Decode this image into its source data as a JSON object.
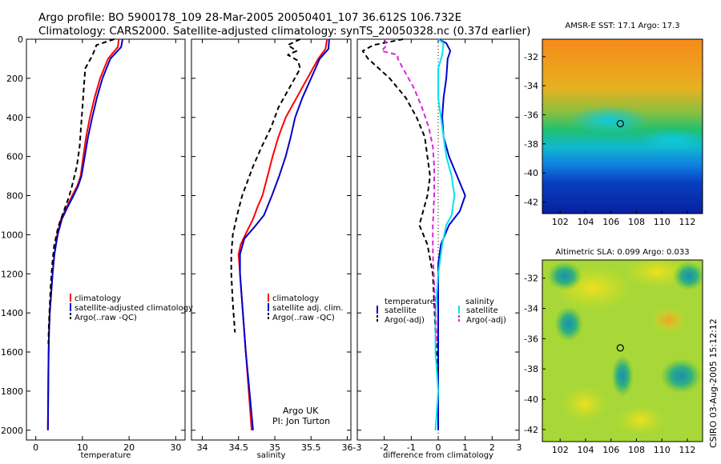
{
  "header": {
    "line1": "Argo profile: BO 5900178_109 28-Mar-2005 20050401_107 36.612S 106.732E",
    "line2": "Climatology: CARS2000. Satellite-adjusted climatology: synTS_20050328.nc (0.37d earlier)"
  },
  "credit": {
    "line1": "Argo UK",
    "line2": "PI: Jon Turton"
  },
  "side_stamp": "CSIRO 03-Aug-2005 15:12:12",
  "colors": {
    "climatology": "#ff0000",
    "satellite": "#0000cc",
    "argo": "#000000",
    "sal_satellite": "#00e5ee",
    "sal_argo": "#dd22dd"
  },
  "chart_data": [
    {
      "type": "line",
      "xlabel": "temperature",
      "xticks": [
        0,
        10,
        20,
        30
      ],
      "xlim": [
        -2,
        32
      ],
      "yticks": [
        0,
        200,
        400,
        600,
        800,
        1000,
        1200,
        1400,
        1600,
        1800,
        2000
      ],
      "ylim": [
        2050,
        0
      ],
      "legend": [
        "climatology",
        "satellite-adjusted climatology",
        "Argo(..raw -QC)"
      ],
      "series": [
        {
          "name": "climatology",
          "color": "#ff0000",
          "dash": "",
          "x": [
            17.8,
            17.6,
            15.5,
            13.8,
            12.6,
            11.6,
            10.8,
            10.2,
            9.6,
            8.9,
            7.8,
            6.6,
            5.4,
            4.6,
            4.0,
            3.6,
            3.3,
            3.0,
            2.85,
            2.75,
            2.7,
            2.65,
            2.6
          ],
          "y": [
            0,
            40,
            100,
            200,
            300,
            400,
            500,
            600,
            700,
            750,
            800,
            860,
            920,
            1000,
            1100,
            1200,
            1300,
            1400,
            1500,
            1600,
            1700,
            1850,
            2000
          ]
        },
        {
          "name": "satellite-adjusted climatology",
          "color": "#0000cc",
          "dash": "",
          "x": [
            18.6,
            18.3,
            16.0,
            14.3,
            13.1,
            12.1,
            11.2,
            10.5,
            9.8,
            9.1,
            8.1,
            6.8,
            5.6,
            4.7,
            4.0,
            3.6,
            3.3,
            3.0,
            2.85,
            2.75,
            2.7,
            2.65,
            2.6
          ],
          "y": [
            0,
            40,
            100,
            200,
            300,
            400,
            500,
            600,
            700,
            750,
            800,
            860,
            920,
            1000,
            1100,
            1200,
            1300,
            1400,
            1500,
            1600,
            1700,
            1850,
            2000
          ]
        },
        {
          "name": "Argo(..raw -QC)",
          "color": "#000000",
          "dash": "6,4",
          "x": [
            16.8,
            13.0,
            12.2,
            10.6,
            10.3,
            10.0,
            9.7,
            9.4,
            8.8,
            8.0,
            7.2,
            6.0,
            4.8,
            3.9,
            3.5,
            3.2,
            3.0,
            2.8,
            2.7
          ],
          "y": [
            0,
            30,
            80,
            150,
            250,
            350,
            450,
            550,
            650,
            730,
            800,
            880,
            960,
            1060,
            1160,
            1260,
            1360,
            1460,
            1560
          ]
        }
      ]
    },
    {
      "type": "line",
      "xlabel": "salinity",
      "xticks": [
        34,
        34.5,
        35,
        35.5,
        36
      ],
      "xlim": [
        33.85,
        36.05
      ],
      "yticks": [
        0,
        200,
        400,
        600,
        800,
        1000,
        1200,
        1400,
        1600,
        1800,
        2000
      ],
      "ylim": [
        2050,
        0
      ],
      "legend": [
        "climatology",
        "satellite adj. clim.",
        "Argo(..raw -QC)"
      ],
      "series": [
        {
          "name": "climatology",
          "color": "#ff0000",
          "dash": "",
          "x": [
            35.72,
            35.7,
            35.6,
            35.45,
            35.3,
            35.15,
            35.05,
            34.97,
            34.9,
            34.83,
            34.76,
            34.7,
            34.62,
            34.53,
            34.5,
            34.52,
            34.56,
            34.6,
            34.64,
            34.68
          ],
          "y": [
            0,
            50,
            100,
            200,
            300,
            400,
            500,
            600,
            700,
            800,
            860,
            920,
            980,
            1050,
            1100,
            1200,
            1400,
            1600,
            1800,
            2000
          ]
        },
        {
          "name": "satellite adj. clim.",
          "color": "#0000cc",
          "dash": "",
          "x": [
            35.75,
            35.74,
            35.62,
            35.5,
            35.38,
            35.28,
            35.22,
            35.15,
            35.06,
            34.96,
            34.85,
            34.72,
            34.58,
            34.52,
            34.52,
            34.56,
            34.6,
            34.65,
            34.7
          ],
          "y": [
            0,
            50,
            100,
            200,
            300,
            400,
            500,
            600,
            700,
            800,
            900,
            960,
            1020,
            1100,
            1200,
            1400,
            1600,
            1800,
            2000
          ]
        },
        {
          "name": "Argo(..raw -QC)",
          "color": "#000000",
          "dash": "6,4",
          "x": [
            35.35,
            35.18,
            35.3,
            35.18,
            35.32,
            35.35,
            35.2,
            35.05,
            34.95,
            34.82,
            34.7,
            34.55,
            34.48,
            34.42,
            34.4,
            34.4,
            34.42,
            34.45
          ],
          "y": [
            0,
            30,
            60,
            80,
            110,
            150,
            250,
            350,
            450,
            550,
            650,
            800,
            900,
            1000,
            1100,
            1200,
            1350,
            1500
          ]
        }
      ]
    },
    {
      "type": "line",
      "xlabel": "difference from climatology",
      "xticks": [
        -3,
        -2,
        -1,
        0,
        1,
        2,
        3
      ],
      "xlim": [
        -3,
        3
      ],
      "yticks": [
        0,
        200,
        400,
        600,
        800,
        1000,
        1200,
        1400,
        1600,
        1800,
        2000
      ],
      "ylim": [
        2050,
        0
      ],
      "legend": [
        "temperature",
        "satellite",
        "Argo(-adj)",
        "salinity",
        "satellite",
        "Argo(-adj)"
      ],
      "series": [
        {
          "name": "temperature satellite",
          "color": "#0000cc",
          "dash": "",
          "x": [
            0.0,
            0.3,
            0.45,
            0.35,
            0.3,
            0.2,
            0.15,
            0.2,
            0.4,
            0.7,
            1.0,
            0.8,
            0.4,
            0.1,
            0.0,
            0.0,
            0.0,
            0.0,
            0.0,
            0.0,
            0.0
          ],
          "y": [
            0,
            20,
            60,
            100,
            200,
            300,
            400,
            500,
            600,
            700,
            800,
            880,
            950,
            1050,
            1150,
            1300,
            1400,
            1600,
            1800,
            1900,
            2000
          ]
        },
        {
          "name": "temperature Argo(-adj)",
          "color": "#000000",
          "dash": "6,4",
          "x": [
            -1.3,
            -2.4,
            -2.8,
            -2.6,
            -1.8,
            -1.2,
            -0.8,
            -0.5,
            -0.4,
            -0.3,
            -0.4,
            -0.6,
            -0.7,
            -0.4,
            -0.2,
            -0.15,
            -0.1,
            -0.05,
            0.0
          ],
          "y": [
            0,
            30,
            60,
            100,
            200,
            300,
            400,
            500,
            600,
            700,
            800,
            900,
            950,
            1050,
            1200,
            1350,
            1500,
            1600,
            1700
          ]
        },
        {
          "name": "salinity satellite",
          "color": "#00e5ee",
          "dash": "",
          "x": [
            0.0,
            0.2,
            0.15,
            0.0,
            0.0,
            0.1,
            0.2,
            0.3,
            0.5,
            0.6,
            0.5,
            0.3,
            0.15,
            0.0,
            -0.1,
            -0.1,
            0.0,
            -0.05,
            -0.1
          ],
          "y": [
            0,
            20,
            80,
            150,
            300,
            400,
            500,
            600,
            700,
            800,
            900,
            950,
            1050,
            1200,
            1400,
            1600,
            1800,
            1900,
            2000
          ]
        },
        {
          "name": "salinity Argo(-adj)",
          "color": "#dd22dd",
          "dash": "6,4",
          "x": [
            -2.0,
            -1.9,
            -2.1,
            -1.5,
            -1.5,
            -1.3,
            -0.9,
            -0.6,
            -0.35,
            -0.2,
            -0.15,
            -0.15,
            -0.2,
            -0.2,
            -0.15,
            -0.1,
            -0.05
          ],
          "y": [
            0,
            30,
            60,
            80,
            100,
            150,
            250,
            350,
            450,
            550,
            650,
            800,
            950,
            1100,
            1250,
            1400,
            1550
          ]
        }
      ]
    }
  ],
  "maps": [
    {
      "title": "AMSR-E SST: 17.1 Argo: 17.3",
      "xticks": [
        102,
        104,
        106,
        108,
        110,
        112
      ],
      "yticks": [
        -32,
        -34,
        -36,
        -38,
        -40,
        -42
      ],
      "marker": {
        "lon": 106.73,
        "lat": -36.61
      }
    },
    {
      "title": "Altimetric SLA: 0.099 Argo: 0.033",
      "xticks": [
        102,
        104,
        106,
        108,
        110,
        112
      ],
      "yticks": [
        -32,
        -34,
        -36,
        -38,
        -40,
        -42
      ],
      "marker": {
        "lon": 106.73,
        "lat": -36.61
      }
    }
  ]
}
